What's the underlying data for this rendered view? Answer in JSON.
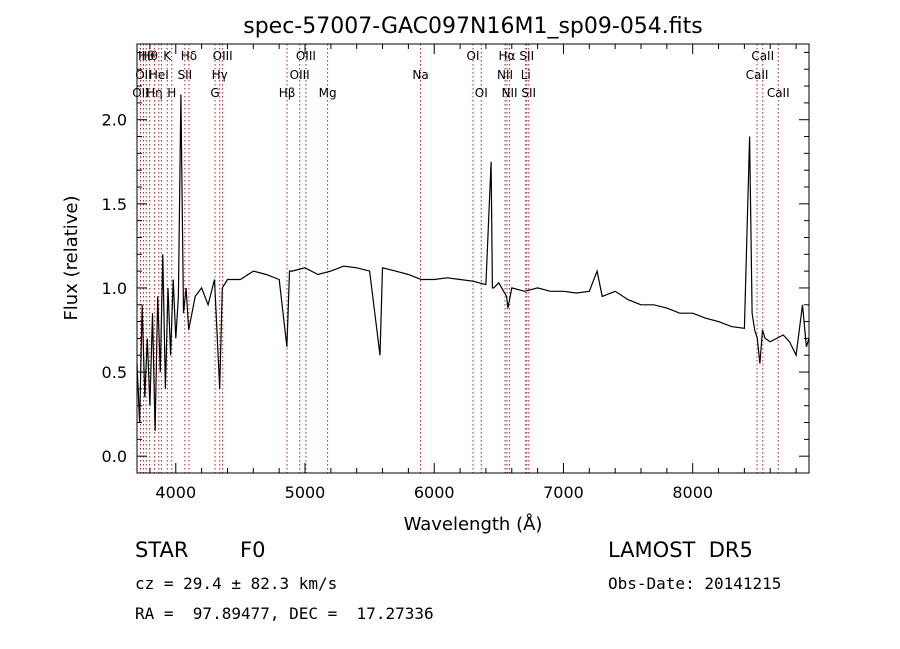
{
  "chart_data": {
    "type": "line",
    "title": "spec-57007-GAC097N16M1_sp09-054.fits",
    "xlabel": "Wavelength (Å)",
    "ylabel": "Flux (relative)",
    "xlim": [
      3700,
      8900
    ],
    "ylim": [
      -0.1,
      2.45
    ],
    "xticks": [
      4000,
      5000,
      6000,
      7000,
      8000
    ],
    "yticks": [
      0.0,
      0.5,
      1.0,
      1.5,
      2.0
    ],
    "xtick_labels": [
      "4000",
      "5000",
      "6000",
      "7000",
      "8000"
    ],
    "ytick_labels": [
      "0.0",
      "0.5",
      "1.0",
      "1.5",
      "2.0"
    ],
    "grid": false,
    "series": [
      {
        "color": "#000000",
        "x": [
          3700,
          3720,
          3740,
          3760,
          3780,
          3800,
          3820,
          3840,
          3860,
          3880,
          3900,
          3920,
          3940,
          3960,
          3980,
          4000,
          4020,
          4040,
          4060,
          4080,
          4100,
          4150,
          4200,
          4250,
          4300,
          4340,
          4360,
          4400,
          4500,
          4600,
          4700,
          4800,
          4860,
          4880,
          4900,
          5000,
          5100,
          5200,
          5300,
          5400,
          5500,
          5580,
          5600,
          5700,
          5800,
          5900,
          6000,
          6100,
          6200,
          6300,
          6400,
          6440,
          6450,
          6460,
          6500,
          6560,
          6570,
          6600,
          6700,
          6800,
          6900,
          7000,
          7100,
          7200,
          7260,
          7300,
          7400,
          7500,
          7600,
          7700,
          7800,
          7900,
          8000,
          8100,
          8200,
          8300,
          8400,
          8440,
          8460,
          8480,
          8500,
          8520,
          8540,
          8560,
          8600,
          8650,
          8700,
          8750,
          8800,
          8850,
          8880,
          8900
        ],
        "y": [
          0.55,
          0.2,
          0.9,
          0.35,
          0.7,
          0.3,
          0.85,
          0.15,
          0.95,
          0.5,
          1.2,
          0.4,
          1.0,
          0.6,
          1.05,
          0.7,
          0.95,
          2.15,
          0.85,
          1.0,
          0.75,
          0.95,
          1.0,
          0.9,
          1.05,
          0.4,
          1.0,
          1.05,
          1.05,
          1.1,
          1.08,
          1.05,
          0.65,
          1.1,
          1.1,
          1.12,
          1.08,
          1.1,
          1.13,
          1.12,
          1.1,
          0.6,
          1.12,
          1.1,
          1.08,
          1.05,
          1.05,
          1.06,
          1.05,
          1.04,
          1.02,
          1.75,
          1.0,
          1.0,
          1.03,
          0.95,
          0.88,
          1.0,
          0.98,
          1.0,
          0.98,
          0.98,
          0.97,
          0.98,
          1.1,
          0.95,
          0.98,
          0.93,
          0.9,
          0.9,
          0.88,
          0.85,
          0.85,
          0.82,
          0.8,
          0.77,
          0.76,
          1.9,
          0.85,
          0.75,
          0.7,
          0.55,
          0.75,
          0.7,
          0.68,
          0.7,
          0.72,
          0.68,
          0.6,
          0.9,
          0.65,
          0.7
        ]
      }
    ],
    "lines": [
      {
        "x": 3727,
        "labels": [
          "OII"
        ],
        "row": 2
      },
      {
        "x": 3750,
        "labels": [
          "OII"
        ],
        "row": 1
      },
      {
        "x": 3771,
        "labels": [
          "Hθ"
        ],
        "row": 0
      },
      {
        "x": 3798,
        "labels": [
          "Hθ"
        ],
        "row": 0
      },
      {
        "x": 3835,
        "labels": [
          "Hη"
        ],
        "row": 2
      },
      {
        "x": 3869,
        "labels": [
          "HeI"
        ],
        "row": 1
      },
      {
        "x": 3889,
        "labels": [],
        "row": 1
      },
      {
        "x": 3934,
        "labels": [
          "K"
        ],
        "row": 0
      },
      {
        "x": 3969,
        "labels": [
          "H"
        ],
        "row": 2
      },
      {
        "x": 4070,
        "labels": [
          "SII"
        ],
        "row": 1
      },
      {
        "x": 4102,
        "labels": [
          "Hδ"
        ],
        "row": 0
      },
      {
        "x": 4304,
        "labels": [
          "G"
        ],
        "row": 2
      },
      {
        "x": 4340,
        "labels": [
          "Hγ"
        ],
        "row": 1
      },
      {
        "x": 4363,
        "labels": [
          "OIII"
        ],
        "row": 0
      },
      {
        "x": 4861,
        "labels": [
          "Hβ"
        ],
        "row": 2
      },
      {
        "x": 4959,
        "labels": [
          "OIII"
        ],
        "row": 1
      },
      {
        "x": 5007,
        "labels": [
          "OIII"
        ],
        "row": 0
      },
      {
        "x": 5175,
        "labels": [
          "Mg"
        ],
        "row": 2
      },
      {
        "x": 5894,
        "labels": [
          "Na"
        ],
        "row": 1
      },
      {
        "x": 6300,
        "labels": [
          "OI"
        ],
        "row": 0
      },
      {
        "x": 6364,
        "labels": [
          "OI"
        ],
        "row": 2
      },
      {
        "x": 6548,
        "labels": [
          "NII"
        ],
        "row": 1
      },
      {
        "x": 6563,
        "labels": [
          "Hα"
        ],
        "row": 0
      },
      {
        "x": 6583,
        "labels": [
          "NII"
        ],
        "row": 2
      },
      {
        "x": 6708,
        "labels": [
          "Li"
        ],
        "row": 1
      },
      {
        "x": 6716,
        "labels": [
          "SII"
        ],
        "row": 0
      },
      {
        "x": 6731,
        "labels": [
          "SII"
        ],
        "row": 2
      },
      {
        "x": 8498,
        "labels": [
          "CaII"
        ],
        "row": 1
      },
      {
        "x": 8542,
        "labels": [
          "CaII"
        ],
        "row": 0
      },
      {
        "x": 8662,
        "labels": [
          "CaII"
        ],
        "row": 2
      }
    ],
    "line_color": "#b22222"
  },
  "footer": {
    "object_class": "STAR",
    "subclass": "F0",
    "survey": "LAMOST  DR5",
    "cz": "cz = 29.4 ± 82.3 km/s",
    "obs_date": "Obs-Date: 20141215",
    "coords": "RA =  97.89477, DEC =  17.27336"
  }
}
